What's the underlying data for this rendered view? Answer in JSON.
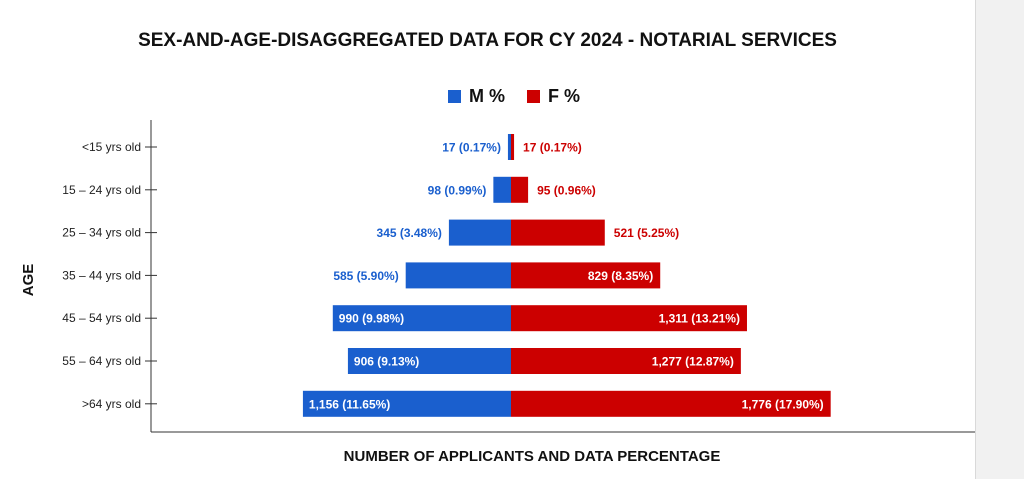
{
  "chart_data": {
    "type": "bar",
    "title": "SEX-AND-AGE-DISAGGREGATED DATA FOR CY 2024 - NOTARIAL SERVICES",
    "xlabel": "NUMBER OF APPLICANTS  AND DATA PERCENTAGE",
    "ylabel": "AGE",
    "legend_position": "top-center",
    "grid": false,
    "categories": [
      "<15 yrs old",
      "15 – 24 yrs old",
      "25 – 34 yrs old",
      "35 – 44 yrs old",
      "45 – 54 yrs old",
      "55 – 64 yrs old",
      ">64 yrs old"
    ],
    "series": [
      {
        "name": "M %",
        "color": "#1a5fce",
        "direction": "left",
        "values": [
          17,
          98,
          345,
          585,
          990,
          906,
          1156
        ],
        "percent": [
          0.17,
          0.99,
          3.48,
          5.9,
          9.98,
          9.13,
          11.65
        ],
        "labels": [
          "17  (0.17%)",
          "98  (0.99%)",
          "345  (3.48%)",
          "585  (5.90%)",
          "990  (9.98%)",
          "906  (9.13%)",
          "1,156 (11.65%)"
        ]
      },
      {
        "name": "F %",
        "color": "#cc0000",
        "direction": "right",
        "values": [
          17,
          95,
          521,
          829,
          1311,
          1277,
          1776
        ],
        "percent": [
          0.17,
          0.96,
          5.25,
          8.35,
          13.21,
          12.87,
          17.9
        ],
        "labels": [
          "17  (0.17%)",
          "95  (0.96%)",
          "521  (5.25%)",
          "829  (8.35%)",
          "1,311  (13.21%)",
          "1,277  (12.87%)",
          "1,776  (17.90%)"
        ]
      }
    ]
  }
}
